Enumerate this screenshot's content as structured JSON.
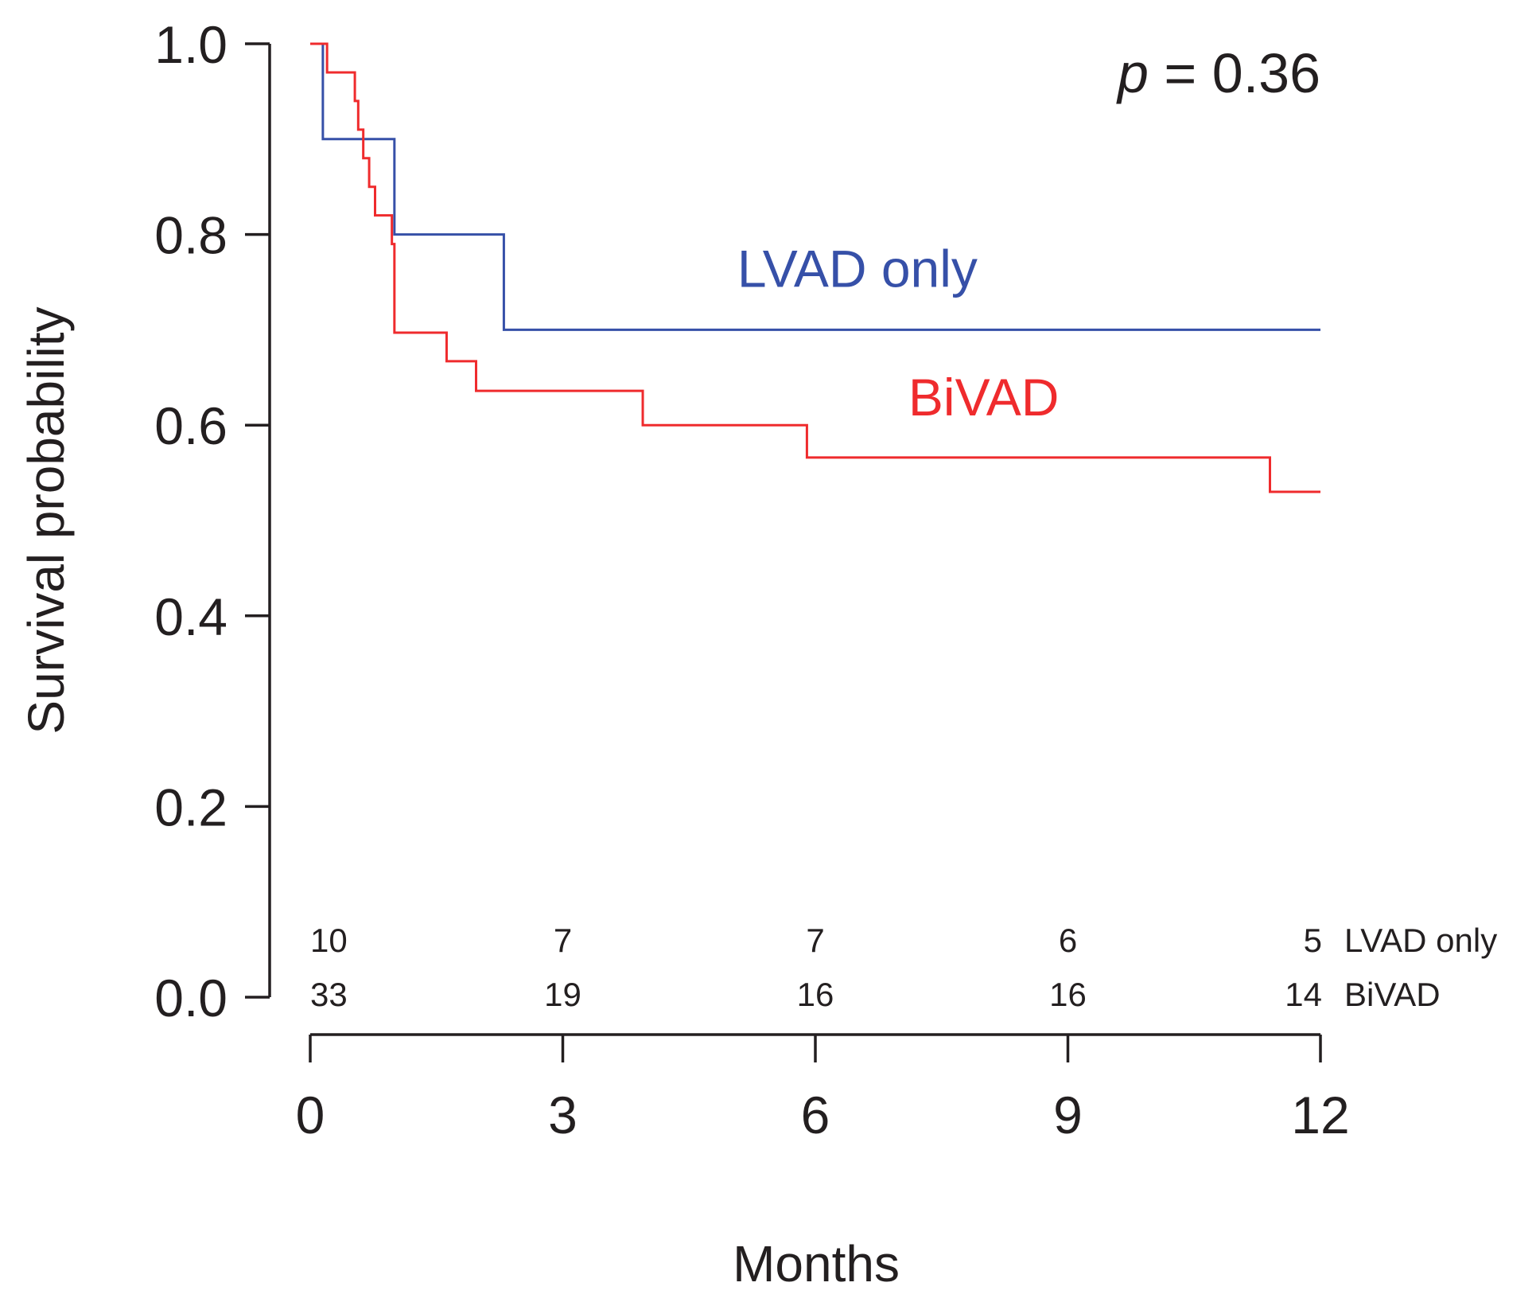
{
  "chart_data": {
    "type": "line",
    "subtype": "kaplan-meier-step",
    "title": "",
    "xlabel": "Months",
    "ylabel": "Survival probability",
    "xlim": [
      0,
      12
    ],
    "ylim": [
      0,
      1
    ],
    "xticks": [
      "0",
      "3",
      "6",
      "9",
      "12"
    ],
    "yticks": [
      "0.0",
      "0.2",
      "0.4",
      "0.6",
      "0.8",
      "1.0"
    ],
    "xtick_values": [
      0,
      3,
      6,
      9,
      12
    ],
    "ytick_values": [
      0,
      0.2,
      0.4,
      0.6,
      0.8,
      1.0
    ],
    "grid": false,
    "annotation": {
      "italic": "p",
      "rest": " = 0.36"
    },
    "series": [
      {
        "name": "LVAD only",
        "color": "#3650a8",
        "label_at": {
          "x": 6.5,
          "y": 0.745
        },
        "steps": [
          [
            0,
            1.0
          ],
          [
            0.15,
            0.9
          ],
          [
            1.0,
            0.8
          ],
          [
            2.3,
            0.7
          ],
          [
            12,
            0.7
          ]
        ]
      },
      {
        "name": "BiVAD",
        "color": "#ef2b2d",
        "label_at": {
          "x": 8.0,
          "y": 0.61
        },
        "steps": [
          [
            0,
            1.0
          ],
          [
            0.2,
            0.97
          ],
          [
            0.53,
            0.94
          ],
          [
            0.57,
            0.91
          ],
          [
            0.63,
            0.88
          ],
          [
            0.7,
            0.85
          ],
          [
            0.77,
            0.82
          ],
          [
            0.97,
            0.79
          ],
          [
            1.0,
            0.697
          ],
          [
            1.62,
            0.667
          ],
          [
            1.97,
            0.636
          ],
          [
            3.95,
            0.6
          ],
          [
            5.9,
            0.566
          ],
          [
            11.4,
            0.53
          ],
          [
            12,
            0.53
          ]
        ]
      }
    ],
    "at_risk": {
      "times": [
        0,
        3,
        6,
        9,
        12
      ],
      "rows": [
        {
          "label": "LVAD only",
          "values": [
            "10",
            "7",
            "7",
            "6",
            "5"
          ]
        },
        {
          "label": "BiVAD",
          "values": [
            "33",
            "19",
            "16",
            "16",
            "14"
          ]
        }
      ]
    }
  }
}
